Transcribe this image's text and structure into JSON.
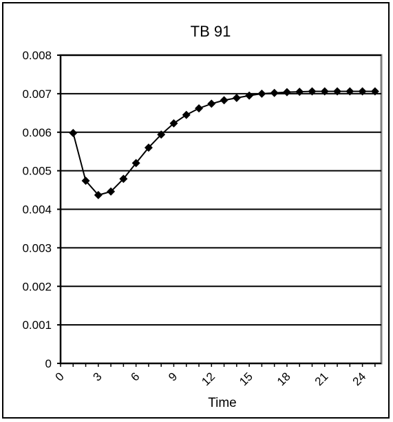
{
  "chart_data": {
    "type": "line",
    "title": "TB 91",
    "xlabel": "Time",
    "ylabel": "",
    "xlim": [
      0,
      25.5
    ],
    "ylim": [
      0,
      0.008
    ],
    "y_ticks": [
      0,
      0.001,
      0.002,
      0.003,
      0.004,
      0.005,
      0.006,
      0.007,
      0.008
    ],
    "y_tick_labels": [
      "0",
      "0.001",
      "0.002",
      "0.003",
      "0.004",
      "0.005",
      "0.006",
      "0.007",
      "0.008"
    ],
    "x_ticks": [
      0,
      3,
      6,
      9,
      12,
      15,
      18,
      21,
      24
    ],
    "x_tick_labels": [
      "0",
      "3",
      "6",
      "9",
      "12",
      "15",
      "18",
      "21",
      "24"
    ],
    "grid": "horizontal",
    "legend": "none",
    "colors": {
      "line": "#000000",
      "marker": "#000000",
      "plot_border": "#808080"
    },
    "series": [
      {
        "x": [
          1,
          2,
          3,
          4,
          5,
          6,
          7,
          8,
          9,
          10,
          11,
          12,
          13,
          14,
          15,
          16,
          17,
          18,
          19,
          20,
          21,
          22,
          23,
          24,
          25
        ],
        "values": [
          0.00598,
          0.00474,
          0.00437,
          0.00446,
          0.00479,
          0.0052,
          0.0056,
          0.00594,
          0.00623,
          0.00645,
          0.00662,
          0.00674,
          0.00683,
          0.00689,
          0.00695,
          0.007,
          0.00702,
          0.00704,
          0.00705,
          0.00706,
          0.00706,
          0.00706,
          0.00706,
          0.00706,
          0.00706
        ]
      }
    ]
  }
}
